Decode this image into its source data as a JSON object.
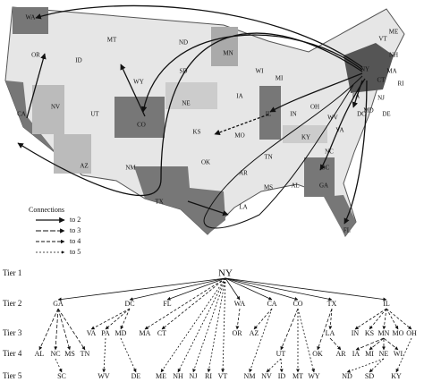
{
  "map": {
    "state_labels": [
      "WA",
      "OR",
      "MT",
      "ID",
      "WY",
      "ND",
      "SD",
      "MN",
      "WI",
      "MI",
      "NE",
      "IA",
      "IL",
      "IN",
      "OH",
      "NY",
      "VT",
      "ME",
      "NH",
      "MA",
      "CT",
      "RI",
      "PA",
      "NJ",
      "MD",
      "DE",
      "DC",
      "WV",
      "VA",
      "KY",
      "NV",
      "UT",
      "CO",
      "CA",
      "AZ",
      "NM",
      "KS",
      "MO",
      "OK",
      "AR",
      "TN",
      "NC",
      "SC",
      "GA",
      "AL",
      "MS",
      "LA",
      "TX",
      "FL"
    ],
    "legend": {
      "title": "Connections",
      "items": [
        "to 2",
        "to 3",
        "to 4",
        "to 5"
      ]
    }
  },
  "tree": {
    "tiers": [
      {
        "label": "Tier 1",
        "nodes": [
          "NY"
        ]
      },
      {
        "label": "Tier 2",
        "nodes": [
          "GA",
          "DC",
          "FL",
          "WA",
          "CA",
          "CO",
          "TX",
          "IL"
        ]
      },
      {
        "label": "Tier 3",
        "nodes": [
          "VA",
          "PA",
          "MD",
          "MA",
          "CT",
          "OR",
          "AZ",
          "LA",
          "IN",
          "KS",
          "MN",
          "MO",
          "OH"
        ]
      },
      {
        "label": "Tier 4",
        "nodes": [
          "AL",
          "NC",
          "MS",
          "TN",
          "UT",
          "OK",
          "AR",
          "IA",
          "MI",
          "NE",
          "WI"
        ]
      },
      {
        "label": "Tier 5",
        "nodes": [
          "SC",
          "WV",
          "DE",
          "ME",
          "NH",
          "NJ",
          "RI",
          "VT",
          "NM",
          "NV",
          "ID",
          "MT",
          "WY",
          "ND",
          "SD",
          "KY"
        ]
      }
    ]
  }
}
